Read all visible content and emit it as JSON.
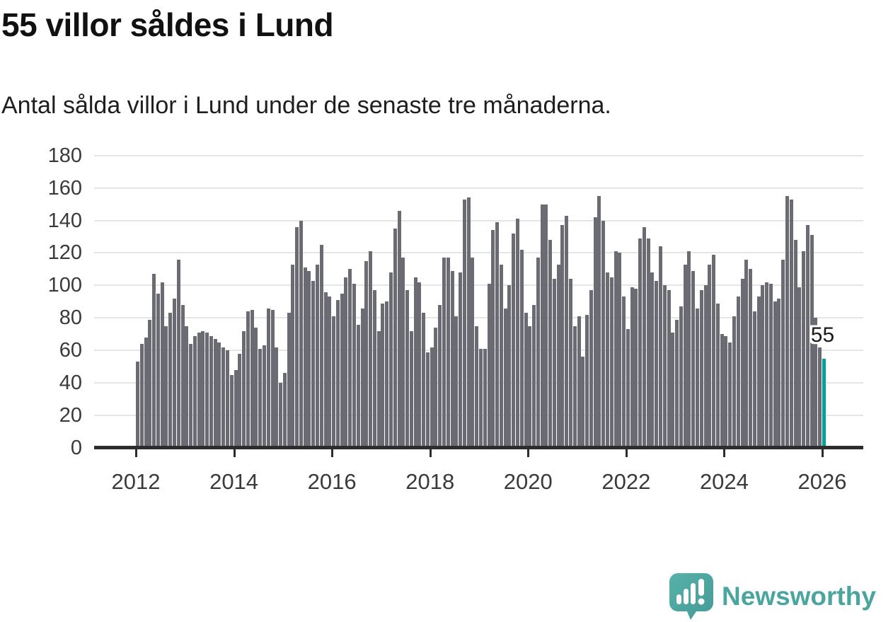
{
  "header": {
    "title": "55 villor såldes i Lund",
    "subtitle": "Antal sålda villor i Lund under de senaste tre månaderna."
  },
  "annotation": {
    "label": "55"
  },
  "logo": {
    "text": "Newsworthy",
    "icon": "speech-bubble-bar-chart-icon"
  },
  "colors": {
    "background": "#ffffff",
    "bar": "#6b6b73",
    "highlight": "#00a39c",
    "gridline": "#e5e5e5",
    "axis": "#2d2d2d",
    "text": "#1a1a1a",
    "tick_text": "#3a3a3a",
    "logo_teal": "#4ba59f"
  },
  "chart_data": {
    "type": "bar",
    "title": "55 villor såldes i Lund",
    "subtitle": "Antal sålda villor i Lund under de senaste tre månaderna.",
    "xlabel": "",
    "ylabel": "",
    "frequency": "monthly (rolling 3-month totals)",
    "start_month": "2012-01",
    "end_month": "2026-01",
    "ylim": [
      0,
      180
    ],
    "grid": "horizontal",
    "legend": "none",
    "y_ticks": [
      0,
      20,
      40,
      60,
      80,
      100,
      120,
      140,
      160,
      180
    ],
    "x_tick_labels": [
      "2012",
      "2014",
      "2016",
      "2018",
      "2020",
      "2022",
      "2024",
      "2026"
    ],
    "x_tick_month_indices": [
      0,
      24,
      48,
      72,
      96,
      120,
      144,
      168
    ],
    "highlight_index": 168,
    "highlight_value": 55,
    "values": [
      53,
      64,
      68,
      79,
      107,
      95,
      102,
      75,
      83,
      92,
      116,
      88,
      75,
      64,
      69,
      71,
      72,
      71,
      69,
      67,
      65,
      62,
      60,
      45,
      48,
      58,
      72,
      84,
      85,
      74,
      61,
      63,
      86,
      85,
      62,
      40,
      46,
      83,
      113,
      136,
      140,
      111,
      109,
      103,
      113,
      125,
      96,
      93,
      81,
      91,
      95,
      105,
      110,
      101,
      76,
      86,
      115,
      121,
      97,
      72,
      89,
      90,
      108,
      135,
      146,
      117,
      97,
      72,
      105,
      102,
      83,
      59,
      62,
      74,
      88,
      117,
      117,
      109,
      81,
      108,
      153,
      154,
      117,
      75,
      61,
      61,
      101,
      134,
      139,
      113,
      86,
      100,
      132,
      141,
      122,
      83,
      75,
      88,
      117,
      150,
      150,
      128,
      104,
      113,
      137,
      143,
      104,
      75,
      81,
      56,
      82,
      97,
      142,
      155,
      140,
      108,
      105,
      121,
      120,
      93,
      73,
      99,
      98,
      129,
      136,
      129,
      108,
      103,
      124,
      100,
      97,
      71,
      79,
      87,
      113,
      121,
      109,
      86,
      97,
      100,
      113,
      119,
      89,
      70,
      69,
      65,
      81,
      93,
      104,
      116,
      110,
      84,
      93,
      100,
      102,
      101,
      90,
      92,
      116,
      155,
      153,
      128,
      99,
      121,
      137,
      131,
      80,
      62,
      55
    ]
  }
}
